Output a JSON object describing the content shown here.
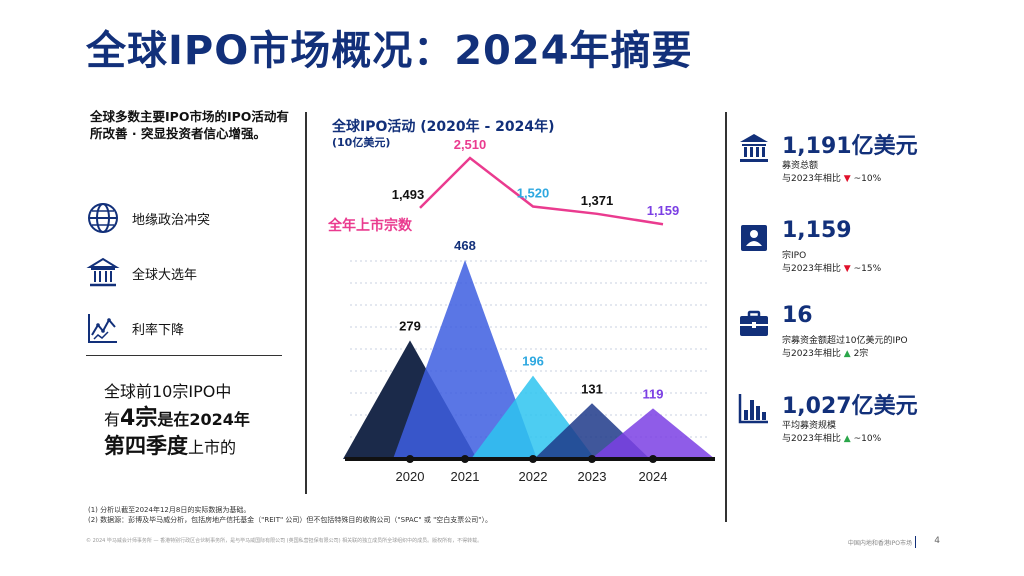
{
  "page_title": "全球IPO市场概况：2024年摘要",
  "intro_text": "全球多数主要IPO市场的IPO活动有所改善 · 突显投资者信心增强。",
  "factors": [
    {
      "icon": "globe-icon",
      "label": "地缘政治冲突"
    },
    {
      "icon": "government-building-icon",
      "label": "全球大选年"
    },
    {
      "icon": "line-graph-icon",
      "label": "利率下降"
    }
  ],
  "q4_note": {
    "line1": "全球前10宗IPO中",
    "line2_pre": "有",
    "line2_big": "4宗",
    "line2_bold": "是在2024年",
    "line3_bold": "第四季度",
    "line3_post": "上市的"
  },
  "chart_data": {
    "type": "area",
    "title": "全球IPO活动 (2020年 - 2024年)",
    "subtitle": "(10亿美元)",
    "categories": [
      "2020",
      "2021",
      "2022",
      "2023",
      "2024"
    ],
    "series": [
      {
        "name": "募资总额 (10亿美元)",
        "values": [
          279,
          468,
          196,
          131,
          119
        ],
        "colors": [
          "#1b2a4a",
          "#3d5ee0",
          "#2ec4f0",
          "#1e3a8a",
          "#7b3fe4"
        ]
      },
      {
        "name": "全年上市宗数",
        "values": [
          1493,
          2510,
          1520,
          1371,
          1159
        ],
        "color": "#ea3b8f"
      }
    ],
    "series_label": "全年上市宗数",
    "value_labels": [
      "279",
      "468",
      "196",
      "131",
      "119"
    ],
    "count_labels": [
      "1,493",
      "2,510",
      "1,520",
      "1,371",
      "1,159"
    ],
    "count_label_colors": [
      "#111111",
      "#ea3b8f",
      "#2ea8e0",
      "#111111",
      "#7b3fe4"
    ],
    "value_label_colors": [
      "#111111",
      "#12307a",
      "#2ea8e0",
      "#111111",
      "#7b3fe4"
    ]
  },
  "stats": [
    {
      "icon": "bank-icon",
      "value": "1,191亿美元",
      "desc": "募资总额",
      "compare": "与2023年相比",
      "arrow": "▼",
      "dir": "down",
      "change": "~10%"
    },
    {
      "icon": "document-person-icon",
      "value": "1,159",
      "desc": "宗IPO",
      "compare": "与2023年相比",
      "arrow": "▼",
      "dir": "down",
      "change": "~15%"
    },
    {
      "icon": "briefcase-icon",
      "value": "16",
      "desc": "宗募资金额超过10亿美元的IPO",
      "compare": "与2023年相比",
      "arrow": "▲",
      "dir": "up",
      "change": "2宗"
    },
    {
      "icon": "bar-chart-icon",
      "value": "1,027亿美元",
      "desc": "平均募资规模",
      "compare": "与2023年相比",
      "arrow": "▲",
      "dir": "up",
      "change": "~10%"
    }
  ],
  "notes": [
    "(1)    分析以截至2024年12月8日的实际数据为基础。",
    "(2)    数据源：彭博及毕马威分析，包括房地产信托基金（\"REIT\" 公司）但不包括特殊目的收购公司（\"SPAC\" 或 \"空白支票公司\"）。"
  ],
  "footer": "© 2024 毕马威会计师事务所 — 香港特别行政区合伙制事务所，是与毕马威国际有限公司 (英国私营担保有限公司) 相关联的独立成员所全球组织中的成员。版权所有，不得转载。",
  "footer_right": "中国内地和香港IPO市场",
  "page_number": "4",
  "colors": {
    "brand": "#12307a",
    "pink": "#ea3b8f",
    "down": "#e0102a",
    "up": "#2aa64a"
  }
}
